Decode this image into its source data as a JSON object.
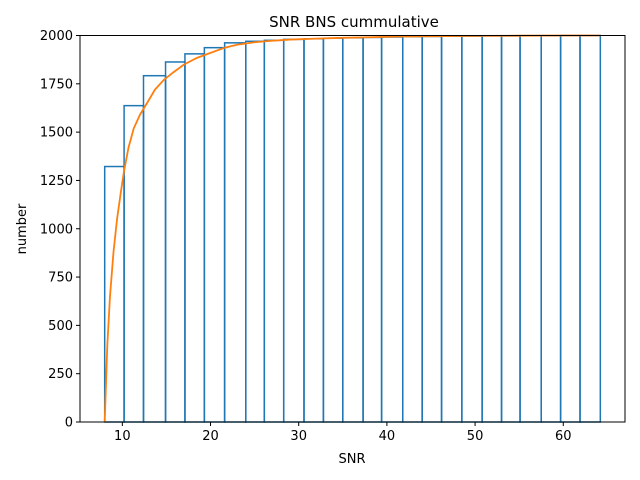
{
  "chart_data": {
    "type": "bar",
    "title": "SNR BNS cummulative",
    "xlabel": "SNR",
    "ylabel": "number",
    "xlim": [
      5.2,
      67.0
    ],
    "ylim": [
      0,
      2000
    ],
    "xticks": [
      10,
      20,
      30,
      40,
      50,
      60
    ],
    "xtick_labels": [
      "10",
      "20",
      "30",
      "40",
      "50",
      "60"
    ],
    "yticks": [
      0,
      250,
      500,
      750,
      1000,
      1250,
      1500,
      1750,
      2000
    ],
    "ytick_labels": [
      "0",
      "250",
      "500",
      "750",
      "1000",
      "1250",
      "1500",
      "1750",
      "2000"
    ],
    "grid": false,
    "legend": "none",
    "histogram": {
      "style": "step-outline",
      "color": "#1f77b4",
      "bin_edges": [
        8.0,
        10.2,
        12.4,
        14.9,
        17.1,
        19.3,
        21.6,
        24.0,
        26.1,
        28.3,
        30.6,
        32.8,
        35.0,
        37.3,
        39.4,
        41.8,
        44.0,
        46.2,
        48.5,
        50.8,
        53.0,
        55.1,
        57.5,
        59.7,
        61.9,
        64.2
      ],
      "values": [
        1322,
        1637,
        1792,
        1863,
        1905,
        1937,
        1962,
        1970,
        1975,
        1980,
        1983,
        1986,
        1988,
        1990,
        1992,
        1994,
        1995,
        1996,
        1997,
        1998,
        1998,
        1999,
        1999,
        2000,
        2000
      ]
    },
    "line": {
      "color": "#ff7f0e",
      "x": [
        8.0,
        8.3,
        8.6,
        9.0,
        9.4,
        9.8,
        10.2,
        10.7,
        11.3,
        12.0,
        12.8,
        13.7,
        14.7,
        15.8,
        17.0,
        18.5,
        20.0,
        21.5,
        23.0,
        25.0,
        27.0,
        29.0,
        32.0,
        35.0,
        38.0,
        41.0,
        45.0,
        50.0,
        55.0,
        60.0,
        64.2
      ],
      "y": [
        0,
        400,
        650,
        880,
        1050,
        1180,
        1300,
        1420,
        1520,
        1590,
        1650,
        1720,
        1770,
        1810,
        1850,
        1885,
        1910,
        1935,
        1952,
        1965,
        1973,
        1979,
        1984,
        1988,
        1991,
        1994,
        1996,
        1998,
        1999,
        2000,
        2000
      ]
    }
  }
}
